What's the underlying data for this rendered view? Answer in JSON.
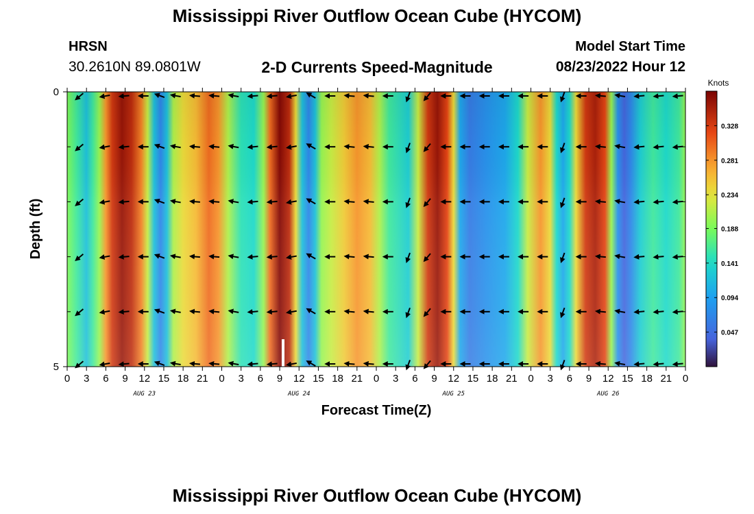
{
  "header": {
    "title": "Mississippi River Outflow Ocean Cube (HYCOM)",
    "station": "HRSN",
    "coords": "30.2610N  89.0801W",
    "subtitle": "2-D Currents Speed-Magnitude",
    "model_start_label": "Model Start Time",
    "model_start_value": "08/23/2022 Hour 12"
  },
  "footer": {
    "title": "Mississippi River Outflow Ocean Cube (HYCOM)"
  },
  "chart_data": {
    "type": "heatmap",
    "title": "2-D Currents Speed-Magnitude",
    "xlabel": "Forecast Time(Z)",
    "ylabel": "Depth (ft)",
    "x_tick_labels": [
      "0",
      "3",
      "6",
      "9",
      "12",
      "15",
      "18",
      "21",
      "0",
      "3",
      "6",
      "9",
      "12",
      "15",
      "18",
      "21",
      "0",
      "3",
      "6",
      "9",
      "12",
      "15",
      "18",
      "21",
      "0",
      "3",
      "6",
      "9",
      "12",
      "15",
      "18",
      "21",
      "0"
    ],
    "day_labels": [
      "AUG 23",
      "AUG 24",
      "AUG 25",
      "AUG 26"
    ],
    "y_tick_labels": [
      "0",
      "5"
    ],
    "ylim": [
      0,
      5
    ],
    "xlim_hours": [
      0,
      96
    ],
    "colorbar": {
      "label": "Knots",
      "ticks": [
        "0.328",
        "0.281",
        "0.234",
        "0.188",
        "0.141",
        "0.094",
        "0.047"
      ],
      "range": [
        0.0,
        0.375
      ]
    },
    "speed_by_hour": [
      {
        "h": 0,
        "v": 0.19
      },
      {
        "h": 1.5,
        "v": 0.16
      },
      {
        "h": 3,
        "v": 0.12
      },
      {
        "h": 4,
        "v": 0.16
      },
      {
        "h": 5,
        "v": 0.2
      },
      {
        "h": 6,
        "v": 0.28
      },
      {
        "h": 7,
        "v": 0.33
      },
      {
        "h": 8.5,
        "v": 0.36
      },
      {
        "h": 10,
        "v": 0.34
      },
      {
        "h": 11.5,
        "v": 0.29
      },
      {
        "h": 12.5,
        "v": 0.22
      },
      {
        "h": 13.5,
        "v": 0.12
      },
      {
        "h": 14.5,
        "v": 0.07
      },
      {
        "h": 15.5,
        "v": 0.12
      },
      {
        "h": 16.5,
        "v": 0.21
      },
      {
        "h": 18,
        "v": 0.24
      },
      {
        "h": 20,
        "v": 0.26
      },
      {
        "h": 22,
        "v": 0.3
      },
      {
        "h": 23.5,
        "v": 0.28
      },
      {
        "h": 25,
        "v": 0.21
      },
      {
        "h": 27,
        "v": 0.15
      },
      {
        "h": 29,
        "v": 0.14
      },
      {
        "h": 30.5,
        "v": 0.2
      },
      {
        "h": 31.5,
        "v": 0.3
      },
      {
        "h": 33,
        "v": 0.37
      },
      {
        "h": 34.5,
        "v": 0.34
      },
      {
        "h": 35.5,
        "v": 0.24
      },
      {
        "h": 36.5,
        "v": 0.12
      },
      {
        "h": 37.5,
        "v": 0.07
      },
      {
        "h": 38.5,
        "v": 0.12
      },
      {
        "h": 39.5,
        "v": 0.2
      },
      {
        "h": 41,
        "v": 0.22
      },
      {
        "h": 43,
        "v": 0.25
      },
      {
        "h": 45,
        "v": 0.28
      },
      {
        "h": 47,
        "v": 0.26
      },
      {
        "h": 48.5,
        "v": 0.21
      },
      {
        "h": 50,
        "v": 0.16
      },
      {
        "h": 53,
        "v": 0.13
      },
      {
        "h": 54.5,
        "v": 0.22
      },
      {
        "h": 56,
        "v": 0.33
      },
      {
        "h": 57.5,
        "v": 0.36
      },
      {
        "h": 59,
        "v": 0.32
      },
      {
        "h": 60,
        "v": 0.24
      },
      {
        "h": 61,
        "v": 0.1
      },
      {
        "h": 62.5,
        "v": 0.06
      },
      {
        "h": 65,
        "v": 0.08
      },
      {
        "h": 68,
        "v": 0.1
      },
      {
        "h": 70,
        "v": 0.14
      },
      {
        "h": 71.5,
        "v": 0.22
      },
      {
        "h": 73.5,
        "v": 0.28
      },
      {
        "h": 75,
        "v": 0.24
      },
      {
        "h": 76,
        "v": 0.14
      },
      {
        "h": 77,
        "v": 0.1
      },
      {
        "h": 78,
        "v": 0.14
      },
      {
        "h": 79,
        "v": 0.24
      },
      {
        "h": 80.5,
        "v": 0.33
      },
      {
        "h": 82,
        "v": 0.35
      },
      {
        "h": 83.5,
        "v": 0.32
      },
      {
        "h": 84.5,
        "v": 0.2
      },
      {
        "h": 85.5,
        "v": 0.08
      },
      {
        "h": 86.5,
        "v": 0.04
      },
      {
        "h": 87.5,
        "v": 0.07
      },
      {
        "h": 89,
        "v": 0.13
      },
      {
        "h": 91,
        "v": 0.16
      },
      {
        "h": 93,
        "v": 0.14
      },
      {
        "h": 95,
        "v": 0.16
      },
      {
        "h": 96,
        "v": 0.2
      }
    ],
    "vector_hours": [
      2,
      6,
      9,
      12,
      14.5,
      17,
      20,
      23,
      26,
      29,
      32,
      35,
      38,
      41,
      44,
      47,
      50,
      53,
      56,
      59,
      62,
      65,
      68,
      71,
      74,
      77,
      80,
      83,
      86,
      89,
      92,
      95
    ],
    "vector_depths": [
      0,
      1,
      2,
      3,
      4,
      5
    ],
    "vector_dir_deg_by_hour": [
      220,
      190,
      185,
      180,
      160,
      170,
      175,
      175,
      170,
      185,
      185,
      190,
      150,
      180,
      175,
      175,
      180,
      250,
      230,
      180,
      180,
      180,
      180,
      180,
      180,
      250,
      180,
      175,
      170,
      185,
      185,
      185
    ]
  }
}
